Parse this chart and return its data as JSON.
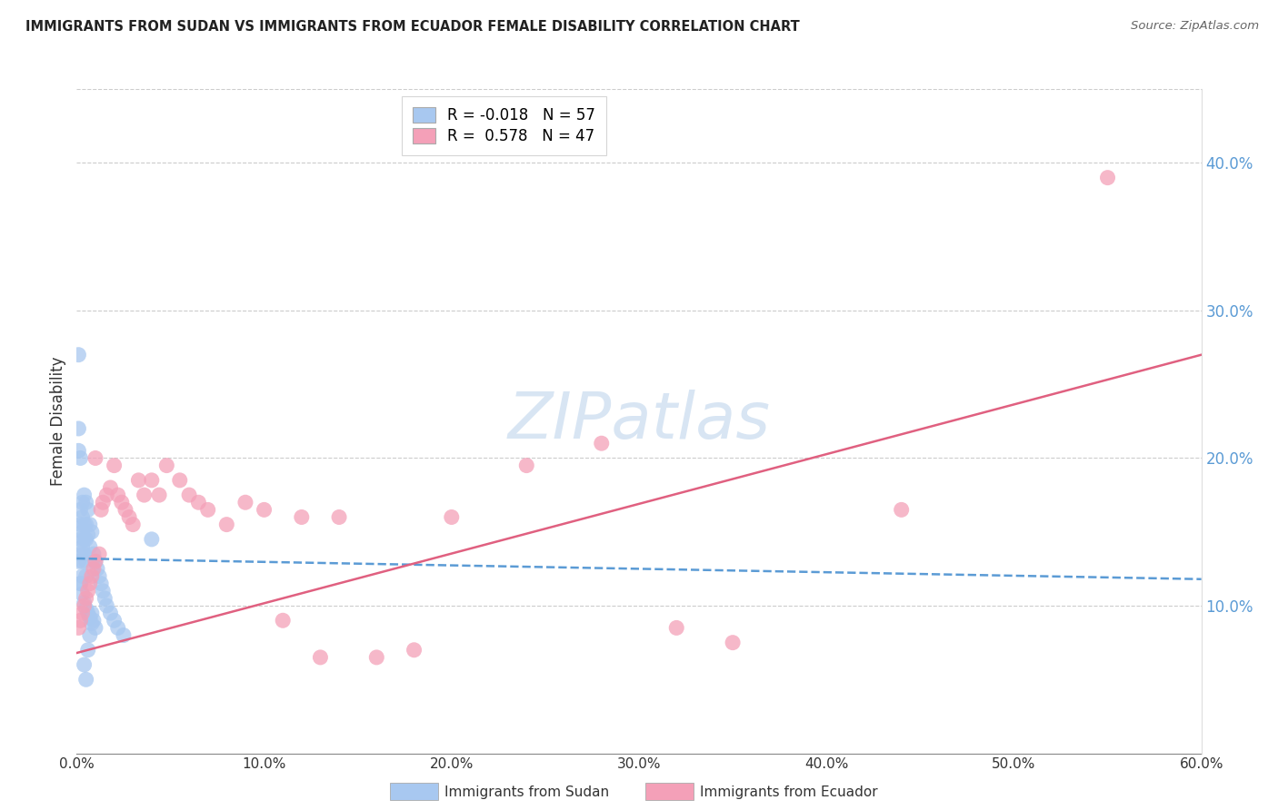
{
  "title": "IMMIGRANTS FROM SUDAN VS IMMIGRANTS FROM ECUADOR FEMALE DISABILITY CORRELATION CHART",
  "source": "Source: ZipAtlas.com",
  "ylabel": "Female Disability",
  "legend_label1": "Immigrants from Sudan",
  "legend_label2": "Immigrants from Ecuador",
  "r1": "-0.018",
  "n1": "57",
  "r2": "0.578",
  "n2": "47",
  "color1": "#A8C8F0",
  "color2": "#F4A0B8",
  "line_color1": "#5B9BD5",
  "line_color2": "#E06080",
  "xmin": 0.0,
  "xmax": 0.6,
  "ymin": 0.0,
  "ymax": 0.45,
  "yticks": [
    0.1,
    0.2,
    0.3,
    0.4
  ],
  "xticks": [
    0.0,
    0.1,
    0.2,
    0.3,
    0.4,
    0.5,
    0.6
  ],
  "watermark": "ZIPatlas",
  "sudan_x": [
    0.001,
    0.001,
    0.001,
    0.001,
    0.002,
    0.002,
    0.002,
    0.002,
    0.002,
    0.002,
    0.003,
    0.003,
    0.003,
    0.003,
    0.003,
    0.003,
    0.004,
    0.004,
    0.004,
    0.004,
    0.004,
    0.005,
    0.005,
    0.005,
    0.005,
    0.005,
    0.005,
    0.006,
    0.006,
    0.006,
    0.007,
    0.007,
    0.007,
    0.008,
    0.008,
    0.009,
    0.009,
    0.01,
    0.01,
    0.011,
    0.012,
    0.013,
    0.014,
    0.015,
    0.016,
    0.018,
    0.02,
    0.022,
    0.025,
    0.002,
    0.003,
    0.004,
    0.005,
    0.006,
    0.007,
    0.008,
    0.04
  ],
  "sudan_y": [
    0.27,
    0.22,
    0.205,
    0.13,
    0.2,
    0.165,
    0.155,
    0.145,
    0.135,
    0.115,
    0.17,
    0.16,
    0.15,
    0.14,
    0.13,
    0.12,
    0.175,
    0.155,
    0.145,
    0.135,
    0.06,
    0.17,
    0.155,
    0.145,
    0.13,
    0.12,
    0.05,
    0.165,
    0.148,
    0.07,
    0.155,
    0.14,
    0.08,
    0.15,
    0.095,
    0.135,
    0.09,
    0.13,
    0.085,
    0.125,
    0.12,
    0.115,
    0.11,
    0.105,
    0.1,
    0.095,
    0.09,
    0.085,
    0.08,
    0.115,
    0.108,
    0.102,
    0.098,
    0.095,
    0.092,
    0.088,
    0.145
  ],
  "ecuador_x": [
    0.001,
    0.002,
    0.003,
    0.004,
    0.005,
    0.006,
    0.007,
    0.008,
    0.009,
    0.01,
    0.012,
    0.013,
    0.014,
    0.016,
    0.018,
    0.02,
    0.022,
    0.024,
    0.026,
    0.028,
    0.03,
    0.033,
    0.036,
    0.04,
    0.044,
    0.048,
    0.055,
    0.06,
    0.065,
    0.07,
    0.08,
    0.09,
    0.1,
    0.11,
    0.12,
    0.13,
    0.14,
    0.16,
    0.18,
    0.2,
    0.24,
    0.28,
    0.32,
    0.35,
    0.44,
    0.55,
    0.01
  ],
  "ecuador_y": [
    0.085,
    0.09,
    0.095,
    0.1,
    0.105,
    0.11,
    0.115,
    0.12,
    0.125,
    0.13,
    0.135,
    0.165,
    0.17,
    0.175,
    0.18,
    0.195,
    0.175,
    0.17,
    0.165,
    0.16,
    0.155,
    0.185,
    0.175,
    0.185,
    0.175,
    0.195,
    0.185,
    0.175,
    0.17,
    0.165,
    0.155,
    0.17,
    0.165,
    0.09,
    0.16,
    0.065,
    0.16,
    0.065,
    0.07,
    0.16,
    0.195,
    0.21,
    0.085,
    0.075,
    0.165,
    0.39,
    0.2
  ],
  "sudan_line_x": [
    0.0,
    0.6
  ],
  "sudan_line_y": [
    0.132,
    0.118
  ],
  "ecuador_line_x": [
    0.0,
    0.6
  ],
  "ecuador_line_y": [
    0.068,
    0.27
  ]
}
